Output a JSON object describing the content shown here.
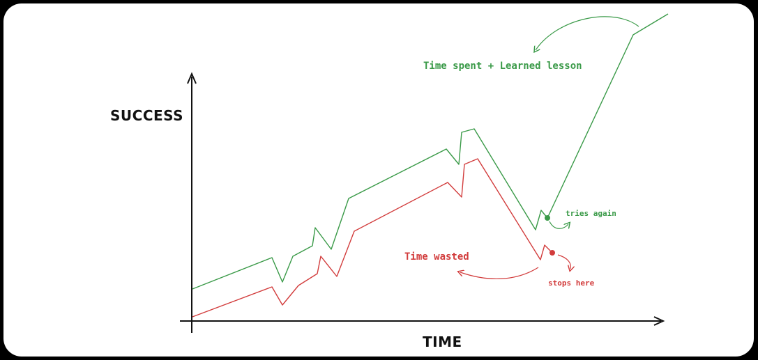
{
  "diagram": {
    "y_axis_label": "SUCCESS",
    "x_axis_label": "TIME",
    "green_label": "Time spent + Learned lesson",
    "green_point_label": "tries again",
    "red_label": "Time wasted",
    "red_point_label": "stops here",
    "colors": {
      "green": "#3a9a48",
      "red": "#d23c3c",
      "axis": "#111111"
    }
  }
}
